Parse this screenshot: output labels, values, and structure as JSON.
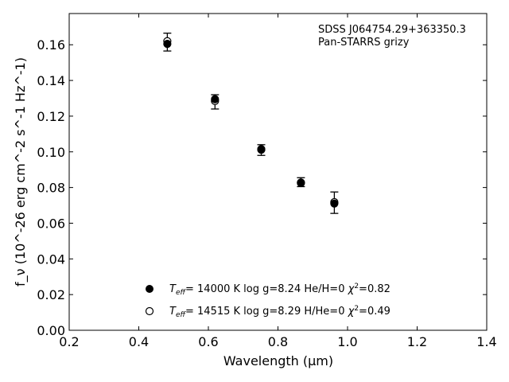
{
  "chart_data": {
    "type": "scatter",
    "title": "",
    "xlabel": "Wavelength (μm)",
    "ylabel": "f_ν (10^-26 erg cm^-2 s^-1 Hz^-1)",
    "xlim": [
      0.2,
      1.4
    ],
    "ylim": [
      0.0,
      0.1775
    ],
    "x_ticks": [
      "0.2",
      "0.4",
      "0.6",
      "0.8",
      "1.0",
      "1.2",
      "1.4"
    ],
    "y_ticks": [
      "0.00",
      "0.02",
      "0.04",
      "0.06",
      "0.08",
      "0.10",
      "0.12",
      "0.14",
      "0.16"
    ],
    "annotations": [
      "SDSS J064754.29+363350.3",
      "Pan-STARRS grizy"
    ],
    "observed": {
      "x": [
        0.482,
        0.619,
        0.752,
        0.866,
        0.962
      ],
      "y": [
        0.1615,
        0.128,
        0.101,
        0.083,
        0.0715
      ],
      "yerr": [
        0.005,
        0.004,
        0.003,
        0.0025,
        0.006
      ]
    },
    "series": [
      {
        "name": "Teff= 14000 K  log g=8.24  He/H=0  χ2=0.82",
        "marker": "filled",
        "x": [
          0.482,
          0.619,
          0.752,
          0.866,
          0.962
        ],
        "y": [
          0.1605,
          0.1295,
          0.1015,
          0.0825,
          0.071
        ]
      },
      {
        "name": "Teff= 14515 K  log g=8.29  H/He=0  χ2=0.49",
        "marker": "open",
        "x": [
          0.482,
          0.619,
          0.752,
          0.866,
          0.962
        ],
        "y": [
          0.162,
          0.1285,
          0.1012,
          0.0828,
          0.0718
        ]
      }
    ],
    "legend": [
      {
        "teff": "14000",
        "logg": "8.24",
        "comp": "He/H=0",
        "chi2": "0.82"
      },
      {
        "teff": "14515",
        "logg": "8.29",
        "comp": "H/He=0",
        "chi2": "0.49"
      }
    ],
    "legend_position": "lower-center",
    "grid": false
  }
}
